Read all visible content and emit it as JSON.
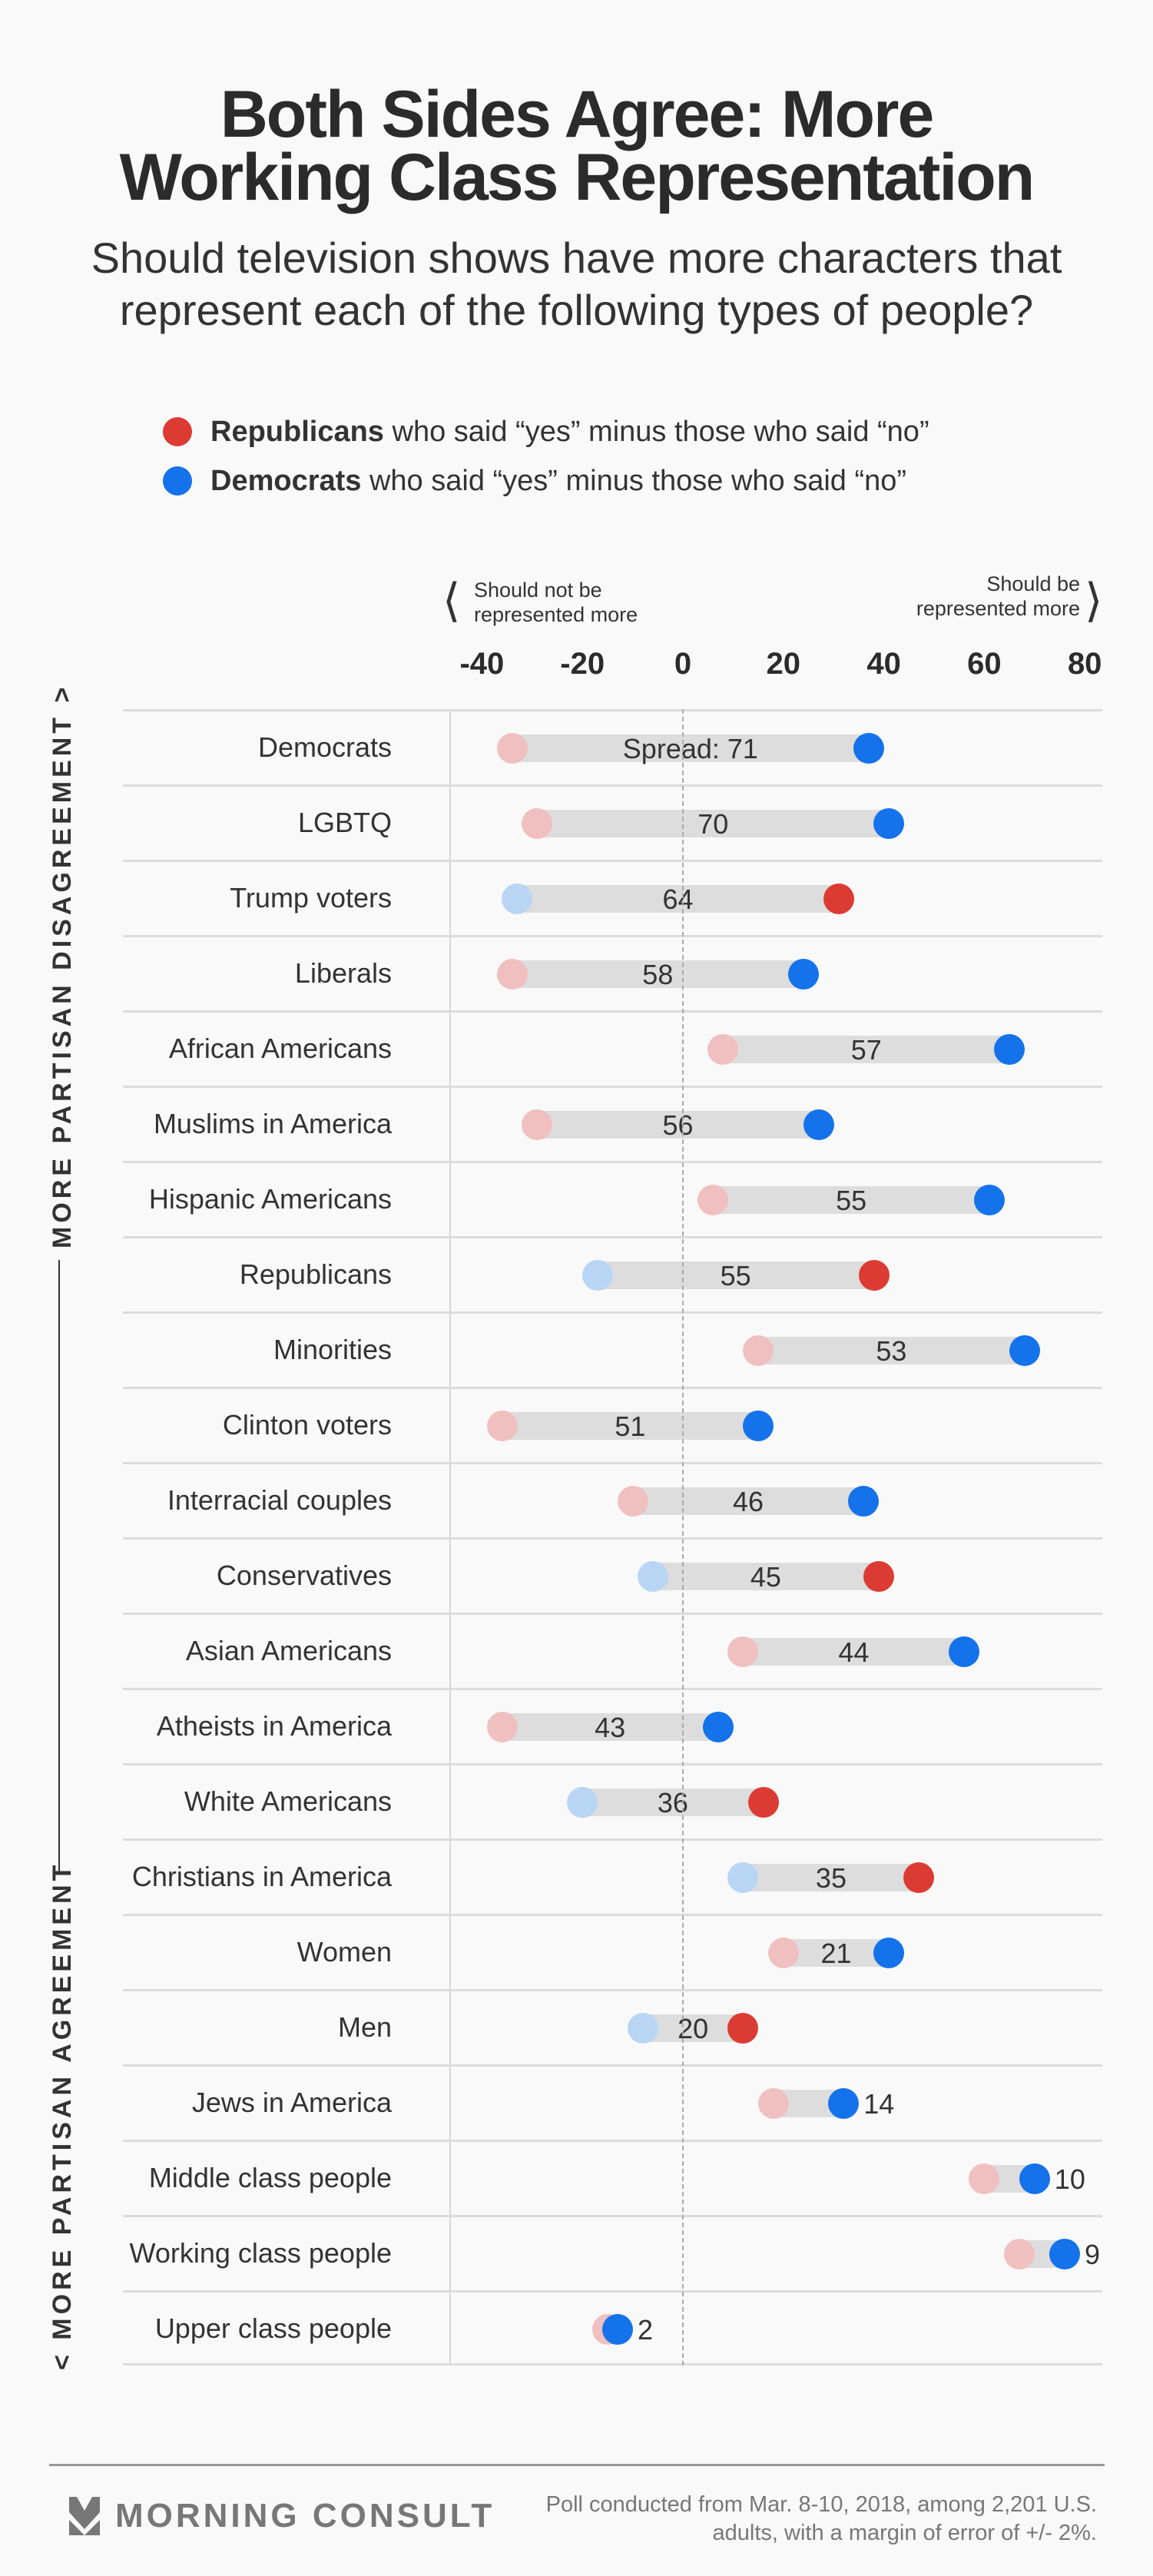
{
  "header": {
    "title_line1": "Both Sides Agree: More",
    "title_line2": "Working Class Representation",
    "subtitle_line1": "Should television shows have more characters that",
    "subtitle_line2": "represent each of the following types of people?"
  },
  "legend": {
    "republicans_bold": "Republicans",
    "republicans_rest": " who said “yes” minus those who said “no”",
    "democrats_bold": "Democrats",
    "democrats_rest": " who said “yes” minus those who said “no”"
  },
  "axis_notes": {
    "left_line1": "Should not be",
    "left_line2": "represented more",
    "right_line1": "Should be",
    "right_line2": "represented more"
  },
  "side_labels": {
    "top": "MORE PARTISAN DISAGREEMENT >",
    "bottom": "< MORE PARTISAN AGREEMENT"
  },
  "colors": {
    "republican": "#dc3b33",
    "republican_light": "#f0c0c0",
    "democrat": "#1472ea",
    "democrat_light": "#b8d5f4",
    "bar": "#dddddd"
  },
  "chart_data": {
    "type": "dumbbell",
    "title": "Both Sides Agree: More Working Class Representation",
    "xlim": [
      -40,
      80
    ],
    "xticks": [
      "-40",
      "-20",
      "0",
      "20",
      "40",
      "60",
      "80"
    ],
    "spread_prefix": "Spread: ",
    "categories": [
      "Democrats",
      "LGBTQ",
      "Trump voters",
      "Liberals",
      "African Americans",
      "Muslims in America",
      "Hispanic Americans",
      "Republicans",
      "Minorities",
      "Clinton voters",
      "Interracial couples",
      "Conservatives",
      "Asian Americans",
      "Atheists in America",
      "White Americans",
      "Christians in America",
      "Women",
      "Men",
      "Jews in America",
      "Middle class people",
      "Working class people",
      "Upper class people"
    ],
    "series": [
      {
        "name": "Republicans",
        "values": [
          -34,
          -29,
          31,
          -34,
          8,
          -29,
          6,
          38,
          15,
          -36,
          -10,
          39,
          12,
          -36,
          16,
          47,
          20,
          12,
          18,
          60,
          67,
          -15
        ]
      },
      {
        "name": "Democrats",
        "values": [
          37,
          41,
          -33,
          24,
          65,
          27,
          61,
          -17,
          68,
          15,
          36,
          -6,
          56,
          7,
          -20,
          12,
          41,
          -8,
          32,
          70,
          76,
          -13
        ]
      }
    ],
    "spreads": [
      "71",
      "70",
      "64",
      "58",
      "57",
      "56",
      "55",
      "55",
      "53",
      "51",
      "46",
      "45",
      "44",
      "43",
      "36",
      "35",
      "21",
      "20",
      "14",
      "10",
      "9",
      "2"
    ]
  },
  "footer": {
    "logo": "MORNING CONSULT",
    "note_line1": "Poll conducted from Mar. 8-10, 2018, among 2,201 U.S.",
    "note_line2": "adults, with a margin of error of +/- 2%."
  }
}
